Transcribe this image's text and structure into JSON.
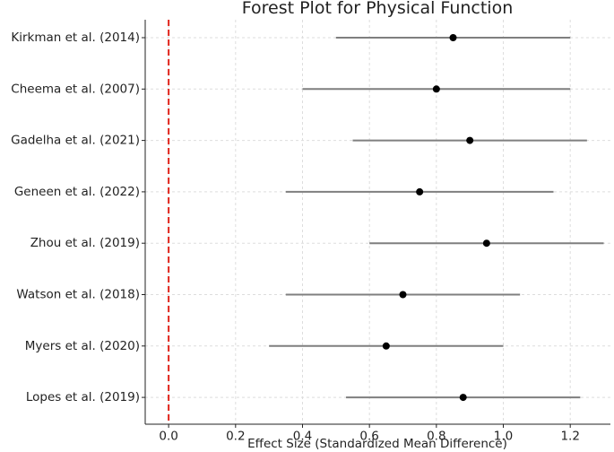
{
  "chart_data": {
    "type": "scatter",
    "title": "Forest Plot for Physical Function",
    "xlabel": "Effect Size (Standardized Mean Difference)",
    "ylabel": "",
    "xlim": [
      -0.07,
      1.32
    ],
    "xticks": [
      "0.0",
      "0.2",
      "0.4",
      "0.6",
      "0.8",
      "1.0",
      "1.2"
    ],
    "xtick_values": [
      0.0,
      0.2,
      0.4,
      0.6,
      0.8,
      1.0,
      1.2
    ],
    "grid": true,
    "reference_line": {
      "x": 0,
      "color": "#e0241b",
      "style": "dashed"
    },
    "point_color": "#000000",
    "ci_color": "#7f7f7f",
    "studies": [
      {
        "label": "Kirkman et al. (2014)",
        "effect": 0.85,
        "lower": 0.5,
        "upper": 1.2
      },
      {
        "label": "Cheema et al. (2007)",
        "effect": 0.8,
        "lower": 0.4,
        "upper": 1.2
      },
      {
        "label": "Gadelha et al. (2021)",
        "effect": 0.9,
        "lower": 0.55,
        "upper": 1.25
      },
      {
        "label": "Geneen et al. (2022)",
        "effect": 0.75,
        "lower": 0.35,
        "upper": 1.15
      },
      {
        "label": "Zhou et al. (2019)",
        "effect": 0.95,
        "lower": 0.6,
        "upper": 1.3
      },
      {
        "label": "Watson et al. (2018)",
        "effect": 0.7,
        "lower": 0.35,
        "upper": 1.05
      },
      {
        "label": "Myers et al. (2020)",
        "effect": 0.65,
        "lower": 0.3,
        "upper": 1.0
      },
      {
        "label": "Lopes et al. (2019)",
        "effect": 0.88,
        "lower": 0.53,
        "upper": 1.23
      }
    ]
  }
}
